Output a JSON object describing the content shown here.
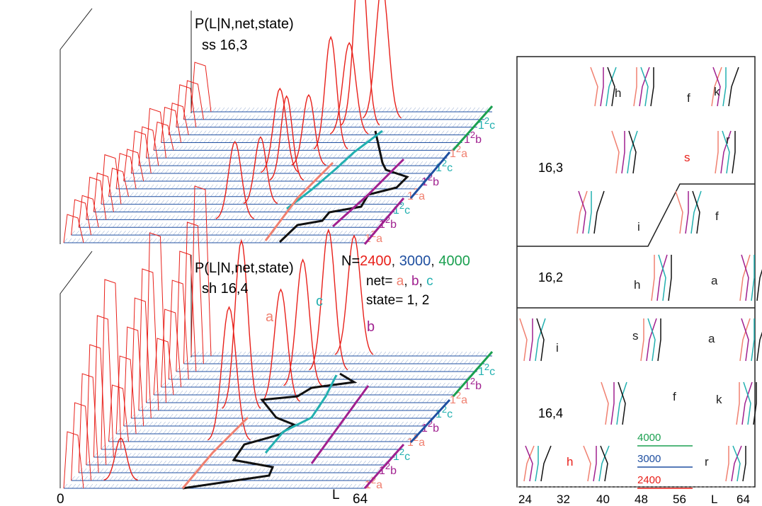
{
  "chart_data": {
    "type": "line",
    "left_panels": [
      {
        "title": "P(L|N,net,state)",
        "subtitle": "ss 16,3"
      },
      {
        "title": "P(L|N,net,state)",
        "subtitle": "sh 16,4",
        "peak_labels": [
          "a",
          "c",
          "b"
        ]
      }
    ],
    "row_labels": [
      {
        "state": "1",
        "sup": "2",
        "net": "a",
        "color": "#f08070"
      },
      {
        "state": "1",
        "sup": "2",
        "net": "b",
        "color": "#a0208f"
      },
      {
        "state": "1",
        "sup": "2",
        "net": "c",
        "color": "#22b0b0"
      }
    ],
    "legend_lines": [
      {
        "prefix": "N=",
        "parts": [
          {
            "text": "2400",
            "color": "#e8201a"
          },
          {
            "text": ", ",
            "color": "#222222"
          },
          {
            "text": "3000",
            "color": "#1f4fa0"
          },
          {
            "text": ", ",
            "color": "#222222"
          },
          {
            "text": "4000",
            "color": "#1ba050"
          }
        ]
      },
      {
        "prefix": "net= ",
        "parts": [
          {
            "text": "a",
            "color": "#f08070"
          },
          {
            "text": ", ",
            "color": "#222222"
          },
          {
            "text": "b",
            "color": "#a0208f"
          },
          {
            "text": ", ",
            "color": "#222222"
          },
          {
            "text": "c",
            "color": "#22b0b0"
          }
        ]
      },
      {
        "prefix": "state= 1, 2",
        "parts": []
      }
    ],
    "x_axis_left": {
      "ticks": [
        "0",
        "L",
        "64"
      ],
      "range": [
        0,
        64
      ]
    },
    "right_panel": {
      "x_ticks": [
        "24",
        "32",
        "40",
        "48",
        "56",
        "L",
        "64"
      ],
      "x_range": [
        24,
        64
      ],
      "sections": [
        "16,3",
        "16,2",
        "16,4"
      ],
      "letters": [
        "h",
        "f",
        "k",
        "s",
        "r",
        "i",
        "f",
        "h",
        "a",
        "i",
        "s",
        "a",
        "f",
        "k",
        "h",
        "r"
      ],
      "legend": [
        {
          "label": "4000",
          "color": "#1ba050"
        },
        {
          "label": "3000",
          "color": "#1f4fa0"
        },
        {
          "label": "2400",
          "color": "#e8201a"
        }
      ]
    },
    "colors": {
      "N2400": "#e8201a",
      "N3000": "#1f4fa0",
      "N4000": "#1ba050",
      "net_a": "#f08070",
      "net_b": "#a0208f",
      "net_c": "#22b0b0",
      "curves": "#e8201a",
      "baseline_hatch": "#1f4fa0",
      "path": "#111111"
    }
  }
}
